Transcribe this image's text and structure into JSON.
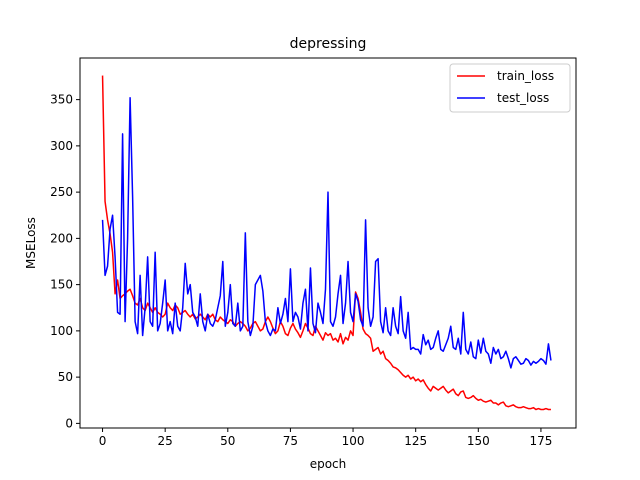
{
  "chart_data": {
    "type": "line",
    "title": "depressing",
    "xlabel": "epoch",
    "ylabel": "MSELoss",
    "xlim": [
      -9,
      189
    ],
    "ylim": [
      -5,
      395
    ],
    "xticks": [
      "0",
      "25",
      "50",
      "75",
      "100",
      "125",
      "150",
      "175"
    ],
    "yticks": [
      "0",
      "50",
      "100",
      "150",
      "200",
      "250",
      "300",
      "350"
    ],
    "grid": false,
    "legend_position": "top-right",
    "series": [
      {
        "name": "train_loss",
        "color": "#ff0000",
        "x": [
          0,
          1,
          2,
          3,
          4,
          5,
          6,
          7,
          8,
          9,
          10,
          11,
          12,
          13,
          14,
          15,
          16,
          17,
          18,
          19,
          20,
          21,
          22,
          23,
          24,
          25,
          26,
          27,
          28,
          29,
          30,
          31,
          32,
          33,
          34,
          35,
          36,
          37,
          38,
          39,
          40,
          41,
          42,
          43,
          44,
          45,
          46,
          47,
          48,
          49,
          50,
          51,
          52,
          53,
          54,
          55,
          56,
          57,
          58,
          59,
          60,
          61,
          62,
          63,
          64,
          65,
          66,
          67,
          68,
          69,
          70,
          71,
          72,
          73,
          74,
          75,
          76,
          77,
          78,
          79,
          80,
          81,
          82,
          83,
          84,
          85,
          86,
          87,
          88,
          89,
          90,
          91,
          92,
          93,
          94,
          95,
          96,
          97,
          98,
          99,
          100,
          101,
          102,
          103,
          104,
          105,
          106,
          107,
          108,
          109,
          110,
          111,
          112,
          113,
          114,
          115,
          116,
          117,
          118,
          119,
          120,
          121,
          122,
          123,
          124,
          125,
          126,
          127,
          128,
          129,
          130,
          131,
          132,
          133,
          134,
          135,
          136,
          137,
          138,
          139,
          140,
          141,
          142,
          143,
          144,
          145,
          146,
          147,
          148,
          149,
          150,
          151,
          152,
          153,
          154,
          155,
          156,
          157,
          158,
          159,
          160,
          161,
          162,
          163,
          164,
          165,
          166,
          167,
          168,
          169,
          170,
          171,
          172,
          173,
          174,
          175,
          176,
          177,
          178,
          179
        ],
        "values": [
          376,
          240,
          220,
          205,
          185,
          140,
          155,
          135,
          138,
          140,
          143,
          145,
          138,
          130,
          128,
          135,
          125,
          122,
          130,
          125,
          120,
          125,
          120,
          118,
          115,
          118,
          130,
          125,
          122,
          128,
          125,
          118,
          120,
          122,
          118,
          115,
          118,
          113,
          115,
          118,
          115,
          112,
          118,
          115,
          118,
          112,
          110,
          115,
          112,
          110,
          108,
          112,
          110,
          105,
          108,
          110,
          108,
          105,
          100,
          103,
          108,
          110,
          105,
          100,
          102,
          110,
          115,
          110,
          103,
          97,
          100,
          110,
          105,
          97,
          95,
          103,
          108,
          102,
          98,
          93,
          100,
          108,
          103,
          97,
          95,
          105,
          100,
          95,
          90,
          98,
          95,
          97,
          90,
          92,
          88,
          97,
          86,
          93,
          90,
          100,
          95,
          142,
          135,
          120,
          102,
          97,
          95,
          92,
          78,
          80,
          82,
          75,
          78,
          70,
          68,
          65,
          61,
          60,
          58,
          55,
          52,
          50,
          52,
          48,
          50,
          46,
          48,
          45,
          47,
          42,
          38,
          35,
          40,
          38,
          36,
          38,
          40,
          36,
          33,
          35,
          37,
          32,
          30,
          34,
          35,
          28,
          27,
          28,
          30,
          27,
          25,
          26,
          24,
          23,
          24,
          25,
          22,
          22,
          20,
          22,
          23,
          19,
          18,
          19,
          20,
          18,
          17,
          17,
          18,
          17,
          16,
          16,
          17,
          15,
          16,
          15,
          15,
          16,
          15,
          15
        ]
      },
      {
        "name": "test_loss",
        "color": "#0000ff",
        "x": [
          0,
          1,
          2,
          3,
          4,
          5,
          6,
          7,
          8,
          9,
          10,
          11,
          12,
          13,
          14,
          15,
          16,
          17,
          18,
          19,
          20,
          21,
          22,
          23,
          24,
          25,
          26,
          27,
          28,
          29,
          30,
          31,
          32,
          33,
          34,
          35,
          36,
          37,
          38,
          39,
          40,
          41,
          42,
          43,
          44,
          45,
          46,
          47,
          48,
          49,
          50,
          51,
          52,
          53,
          54,
          55,
          56,
          57,
          58,
          59,
          60,
          61,
          62,
          63,
          64,
          65,
          66,
          67,
          68,
          69,
          70,
          71,
          72,
          73,
          74,
          75,
          76,
          77,
          78,
          79,
          80,
          81,
          82,
          83,
          84,
          85,
          86,
          87,
          88,
          89,
          90,
          91,
          92,
          93,
          94,
          95,
          96,
          97,
          98,
          99,
          100,
          101,
          102,
          103,
          104,
          105,
          106,
          107,
          108,
          109,
          110,
          111,
          112,
          113,
          114,
          115,
          116,
          117,
          118,
          119,
          120,
          121,
          122,
          123,
          124,
          125,
          126,
          127,
          128,
          129,
          130,
          131,
          132,
          133,
          134,
          135,
          136,
          137,
          138,
          139,
          140,
          141,
          142,
          143,
          144,
          145,
          146,
          147,
          148,
          149,
          150,
          151,
          152,
          153,
          154,
          155,
          156,
          157,
          158,
          159,
          160,
          161,
          162,
          163,
          164,
          165,
          166,
          167,
          168,
          169,
          170,
          171,
          172,
          173,
          174,
          175,
          176,
          177,
          178,
          179
        ],
        "values": [
          220,
          160,
          170,
          210,
          225,
          180,
          120,
          118,
          313,
          110,
          200,
          352,
          245,
          110,
          97,
          160,
          95,
          125,
          180,
          110,
          105,
          185,
          100,
          108,
          130,
          155,
          100,
          110,
          97,
          130,
          105,
          100,
          125,
          173,
          140,
          150,
          120,
          115,
          105,
          140,
          110,
          100,
          118,
          108,
          105,
          112,
          125,
          138,
          175,
          105,
          120,
          150,
          108,
          105,
          130,
          100,
          105,
          206,
          110,
          95,
          105,
          150,
          155,
          160,
          143,
          110,
          100,
          95,
          102,
          100,
          125,
          108,
          118,
          135,
          110,
          167,
          110,
          120,
          115,
          102,
          130,
          145,
          100,
          168,
          108,
          98,
          130,
          120,
          108,
          145,
          250,
          110,
          105,
          115,
          140,
          160,
          108,
          130,
          175,
          120,
          110,
          140,
          132,
          112,
          105,
          220,
          125,
          105,
          115,
          175,
          178,
          110,
          98,
          125,
          100,
          95,
          125,
          105,
          97,
          137,
          100,
          92,
          120,
          80,
          82,
          80,
          80,
          75,
          96,
          85,
          90,
          80,
          82,
          92,
          100,
          80,
          78,
          85,
          92,
          105,
          82,
          80,
          92,
          75,
          120,
          80,
          75,
          88,
          72,
          70,
          90,
          76,
          92,
          78,
          75,
          65,
          82,
          75,
          80,
          70,
          72,
          78,
          70,
          60,
          70,
          72,
          68,
          64,
          65,
          70,
          68,
          63,
          67,
          65,
          67,
          70,
          68,
          64,
          86,
          68
        ]
      }
    ]
  }
}
